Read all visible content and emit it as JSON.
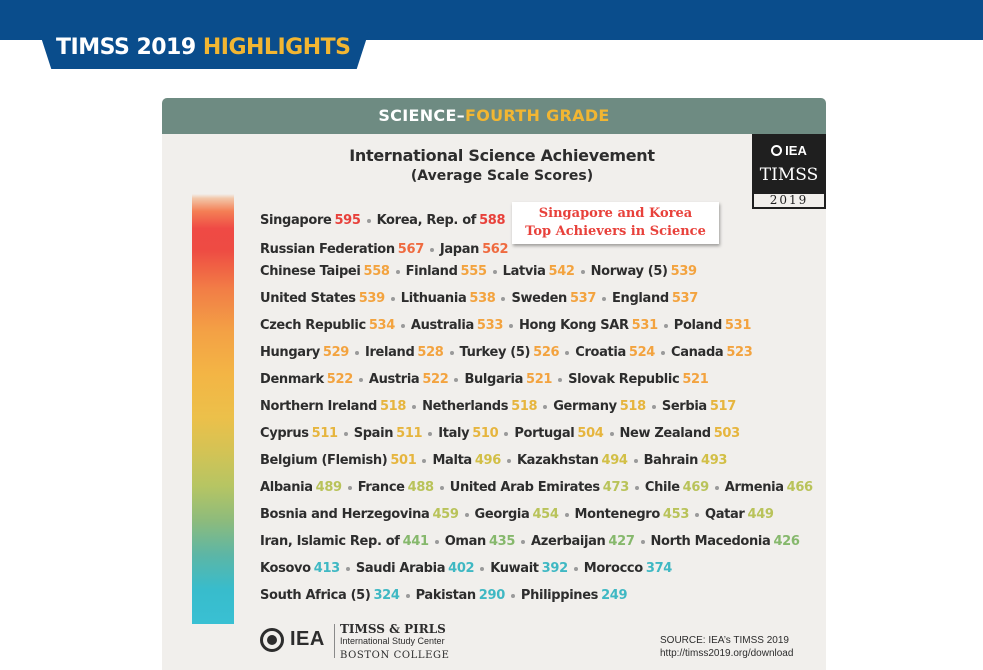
{
  "header": {
    "title_plain": "TIMSS 2019",
    "title_highlight": "HIGHLIGHTS",
    "highlight_color": "#f2b632",
    "brand_color": "#0a4d8c"
  },
  "card": {
    "subject": "SCIENCE",
    "dash": "–",
    "grade": "FOURTH GRADE",
    "title": "International Science Achievement",
    "subtitle": "(Average Scale Scores)",
    "callout_line1": "Singapore and Korea",
    "callout_line2": "Top Achievers in Science",
    "callout_color": "#e8413b"
  },
  "badge": {
    "org": "IEA",
    "name": "TIMSS",
    "year": "2019"
  },
  "score_colors": {
    "red": "#e8413b",
    "orange_red": "#ef6a3f",
    "orange": "#f3a33f",
    "amber": "#e6b53e",
    "yellow_green": "#b9c35a",
    "green": "#86b86c",
    "teal": "#3fb8c3"
  },
  "rows": [
    [
      [
        "Singapore",
        "595",
        "#e8413b"
      ],
      [
        "Korea, Rep. of",
        "588",
        "#e8413b"
      ]
    ],
    [
      [
        "Russian Federation",
        "567",
        "#ef6a3f"
      ],
      [
        "Japan",
        "562",
        "#ef6a3f"
      ]
    ],
    [
      [
        "Chinese Taipei",
        "558",
        "#f3a33f"
      ],
      [
        "Finland",
        "555",
        "#f3a33f"
      ],
      [
        "Latvia",
        "542",
        "#f3a33f"
      ],
      [
        "Norway (5)",
        "539",
        "#f3a33f"
      ]
    ],
    [
      [
        "United States",
        "539",
        "#f3a33f"
      ],
      [
        "Lithuania",
        "538",
        "#f3a33f"
      ],
      [
        "Sweden",
        "537",
        "#f3a33f"
      ],
      [
        "England",
        "537",
        "#f3a33f"
      ]
    ],
    [
      [
        "Czech Republic",
        "534",
        "#f3a33f"
      ],
      [
        "Australia",
        "533",
        "#f3a33f"
      ],
      [
        "Hong Kong SAR",
        "531",
        "#f3a33f"
      ],
      [
        "Poland",
        "531",
        "#f3a33f"
      ]
    ],
    [
      [
        "Hungary",
        "529",
        "#f3a33f"
      ],
      [
        "Ireland",
        "528",
        "#f3a33f"
      ],
      [
        "Turkey (5)",
        "526",
        "#f3a33f"
      ],
      [
        "Croatia",
        "524",
        "#f3a33f"
      ],
      [
        "Canada",
        "523",
        "#f3a33f"
      ]
    ],
    [
      [
        "Denmark",
        "522",
        "#f3a33f"
      ],
      [
        "Austria",
        "522",
        "#f3a33f"
      ],
      [
        "Bulgaria",
        "521",
        "#f3a33f"
      ],
      [
        "Slovak Republic",
        "521",
        "#f3a33f"
      ]
    ],
    [
      [
        "Northern Ireland",
        "518",
        "#e6b53e"
      ],
      [
        "Netherlands",
        "518",
        "#e6b53e"
      ],
      [
        "Germany",
        "518",
        "#e6b53e"
      ],
      [
        "Serbia",
        "517",
        "#e6b53e"
      ]
    ],
    [
      [
        "Cyprus",
        "511",
        "#e6b53e"
      ],
      [
        "Spain",
        "511",
        "#e6b53e"
      ],
      [
        "Italy",
        "510",
        "#e6b53e"
      ],
      [
        "Portugal",
        "504",
        "#e6b53e"
      ],
      [
        "New Zealand",
        "503",
        "#e6b53e"
      ]
    ],
    [
      [
        "Belgium (Flemish)",
        "501",
        "#e6b53e"
      ],
      [
        "Malta",
        "496",
        "#d2bf46"
      ],
      [
        "Kazakhstan",
        "494",
        "#d2bf46"
      ],
      [
        "Bahrain",
        "493",
        "#d2bf46"
      ]
    ],
    [
      [
        "Albania",
        "489",
        "#b9c35a"
      ],
      [
        "France",
        "488",
        "#b9c35a"
      ],
      [
        "United Arab Emirates",
        "473",
        "#b9c35a"
      ],
      [
        "Chile",
        "469",
        "#b9c35a"
      ],
      [
        "Armenia",
        "466",
        "#b9c35a"
      ]
    ],
    [
      [
        "Bosnia and Herzegovina",
        "459",
        "#b9c35a"
      ],
      [
        "Georgia",
        "454",
        "#b9c35a"
      ],
      [
        "Montenegro",
        "453",
        "#b9c35a"
      ],
      [
        "Qatar",
        "449",
        "#b9c35a"
      ]
    ],
    [
      [
        "Iran, Islamic Rep. of",
        "441",
        "#86b86c"
      ],
      [
        "Oman",
        "435",
        "#86b86c"
      ],
      [
        "Azerbaijan",
        "427",
        "#86b86c"
      ],
      [
        "North Macedonia",
        "426",
        "#86b86c"
      ]
    ],
    [
      [
        "Kosovo",
        "413",
        "#3fb8c3"
      ],
      [
        "Saudi Arabia",
        "402",
        "#3fb8c3"
      ],
      [
        "Kuwait",
        "392",
        "#3fb8c3"
      ],
      [
        "Morocco",
        "374",
        "#3fb8c3"
      ]
    ],
    [
      [
        "South Africa (5)",
        "324",
        "#3fb8c3"
      ],
      [
        "Pakistan",
        "290",
        "#3fb8c3"
      ],
      [
        "Philippines",
        "249",
        "#3fb8c3"
      ]
    ]
  ],
  "footer": {
    "logo_iea": "IEA",
    "center_line1": "TIMSS & PIRLS",
    "center_line2": "International Study Center",
    "center_line3": "BOSTON COLLEGE",
    "source_line1": "SOURCE: IEA’s TIMSS 2019",
    "source_line2": "http://timss2019.org/download"
  }
}
